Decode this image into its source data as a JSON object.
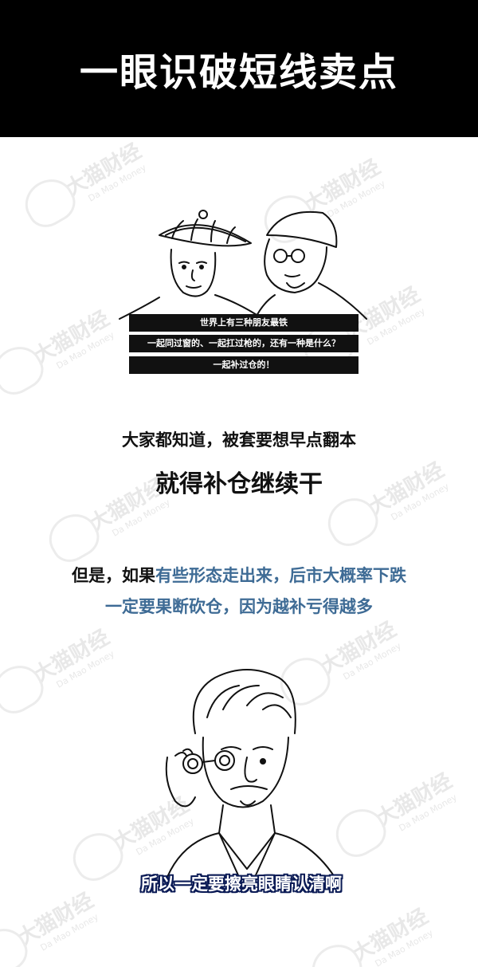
{
  "header": {
    "title": "一眼识破短线卖点"
  },
  "watermark": {
    "cn": "大猫财经",
    "en": "Da Mao Money"
  },
  "scene1": {
    "subtitles": [
      "世界上有三种朋友最铁",
      "一起同过窗的、一起扛过枪的，还有一种是什么？",
      "一起补过仓的！"
    ]
  },
  "text": {
    "line1": "大家都知道，被套要想早点翻本",
    "line2": "就得补仓继续干",
    "line3_dark": "但是，如果",
    "line3_blue": "有些形态走出来，后市大概率下跌",
    "line4": "一定要果断砍仓，因为越补亏得越多"
  },
  "scene2": {
    "caption": "所以一定要擦亮眼睛认清啊"
  }
}
